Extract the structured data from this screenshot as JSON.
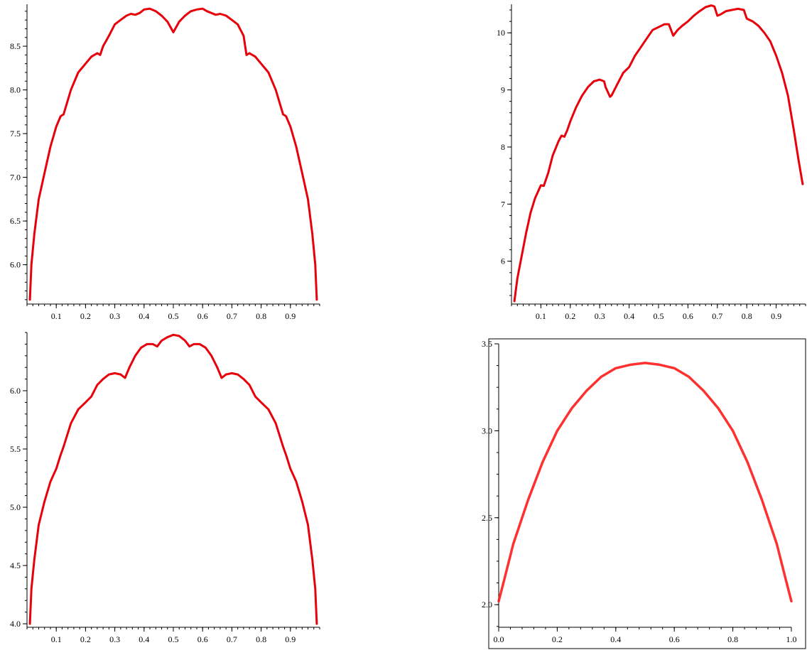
{
  "chart_data": [
    {
      "type": "line",
      "title": "",
      "xlabel": "",
      "ylabel": "",
      "xlim": [
        0.0,
        1.0
      ],
      "ylim": [
        5.55,
        8.98
      ],
      "xticks": [
        0.1,
        0.2,
        0.3,
        0.4,
        0.5,
        0.6,
        0.7,
        0.8,
        0.9
      ],
      "xtick_labels": [
        "0.1",
        "0.2",
        "0.3",
        "0.4",
        "0.5",
        "0.6",
        "0.7",
        "0.8",
        "0.9"
      ],
      "yticks": [
        6.0,
        6.5,
        7.0,
        7.5,
        8.0,
        8.5
      ],
      "ytick_labels": [
        "6.0",
        "6.5",
        "7.0",
        "7.5",
        "8.0",
        "8.5"
      ],
      "grid": false,
      "frame": false,
      "color": "#e8000b",
      "series": [
        {
          "x": [
            0.01,
            0.015,
            0.025,
            0.04,
            0.06,
            0.08,
            0.1,
            0.115,
            0.125,
            0.15,
            0.175,
            0.2,
            0.22,
            0.24,
            0.25,
            0.26,
            0.28,
            0.3,
            0.32,
            0.34,
            0.355,
            0.37,
            0.385,
            0.4,
            0.42,
            0.44,
            0.46,
            0.48,
            0.5,
            0.52,
            0.54,
            0.56,
            0.58,
            0.6,
            0.615,
            0.63,
            0.645,
            0.66,
            0.68,
            0.7,
            0.72,
            0.74,
            0.75,
            0.76,
            0.78,
            0.8,
            0.825,
            0.85,
            0.875,
            0.885,
            0.9,
            0.92,
            0.94,
            0.96,
            0.975,
            0.985,
            0.99
          ],
          "y": [
            5.6,
            6.0,
            6.35,
            6.75,
            7.05,
            7.35,
            7.58,
            7.7,
            7.72,
            8.0,
            8.2,
            8.3,
            8.38,
            8.42,
            8.4,
            8.5,
            8.62,
            8.75,
            8.8,
            8.85,
            8.87,
            8.86,
            8.88,
            8.92,
            8.93,
            8.9,
            8.85,
            8.78,
            8.66,
            8.78,
            8.85,
            8.9,
            8.92,
            8.93,
            8.9,
            8.88,
            8.86,
            8.87,
            8.85,
            8.8,
            8.75,
            8.62,
            8.4,
            8.42,
            8.38,
            8.3,
            8.2,
            8.0,
            7.72,
            7.7,
            7.58,
            7.35,
            7.05,
            6.75,
            6.35,
            6.0,
            5.6
          ]
        }
      ]
    },
    {
      "type": "line",
      "title": "",
      "xlabel": "",
      "ylabel": "",
      "xlim": [
        0.0,
        1.0
      ],
      "ylim": [
        5.25,
        10.5
      ],
      "xticks": [
        0.1,
        0.2,
        0.3,
        0.4,
        0.5,
        0.6,
        0.7,
        0.8,
        0.9
      ],
      "xtick_labels": [
        "0.1",
        "0.2",
        "0.3",
        "0.4",
        "0.5",
        "0.6",
        "0.7",
        "0.8",
        "0.9"
      ],
      "yticks": [
        6,
        7,
        8,
        9,
        10
      ],
      "ytick_labels": [
        "6",
        "7",
        "8",
        "9",
        "10"
      ],
      "grid": false,
      "frame": false,
      "color": "#e8000b",
      "series": [
        {
          "x": [
            0.01,
            0.02,
            0.035,
            0.05,
            0.065,
            0.08,
            0.1,
            0.11,
            0.125,
            0.14,
            0.16,
            0.17,
            0.18,
            0.19,
            0.2,
            0.22,
            0.24,
            0.26,
            0.28,
            0.3,
            0.315,
            0.32,
            0.335,
            0.34,
            0.36,
            0.38,
            0.4,
            0.42,
            0.44,
            0.46,
            0.48,
            0.5,
            0.52,
            0.535,
            0.55,
            0.565,
            0.58,
            0.6,
            0.62,
            0.64,
            0.66,
            0.68,
            0.69,
            0.7,
            0.71,
            0.73,
            0.75,
            0.77,
            0.79,
            0.8,
            0.82,
            0.84,
            0.86,
            0.88,
            0.9,
            0.92,
            0.94,
            0.96,
            0.975,
            0.99
          ],
          "y": [
            5.3,
            5.7,
            6.1,
            6.5,
            6.85,
            7.1,
            7.33,
            7.32,
            7.55,
            7.85,
            8.1,
            8.2,
            8.18,
            8.3,
            8.45,
            8.7,
            8.9,
            9.05,
            9.15,
            9.18,
            9.15,
            9.05,
            8.88,
            8.9,
            9.1,
            9.3,
            9.4,
            9.6,
            9.75,
            9.9,
            10.05,
            10.1,
            10.15,
            10.15,
            9.95,
            10.05,
            10.12,
            10.2,
            10.3,
            10.38,
            10.45,
            10.48,
            10.46,
            10.3,
            10.32,
            10.38,
            10.4,
            10.42,
            10.4,
            10.25,
            10.2,
            10.12,
            10.0,
            9.85,
            9.6,
            9.3,
            8.9,
            8.3,
            7.8,
            7.35
          ]
        }
      ]
    },
    {
      "type": "line",
      "title": "",
      "xlabel": "",
      "ylabel": "",
      "xlim": [
        0.0,
        1.0
      ],
      "ylim": [
        3.97,
        6.5
      ],
      "xticks": [
        0.1,
        0.2,
        0.3,
        0.4,
        0.5,
        0.6,
        0.7,
        0.8,
        0.9
      ],
      "xtick_labels": [
        "0.1",
        "0.2",
        "0.3",
        "0.4",
        "0.5",
        "0.6",
        "0.7",
        "0.8",
        "0.9"
      ],
      "yticks": [
        4.0,
        4.5,
        5.0,
        5.5,
        6.0
      ],
      "ytick_labels": [
        "4.0",
        "4.5",
        "5.0",
        "5.5",
        "6.0"
      ],
      "grid": false,
      "frame": false,
      "color": "#e8000b",
      "series": [
        {
          "x": [
            0.01,
            0.015,
            0.025,
            0.04,
            0.06,
            0.08,
            0.1,
            0.115,
            0.125,
            0.15,
            0.175,
            0.2,
            0.22,
            0.24,
            0.26,
            0.28,
            0.3,
            0.32,
            0.335,
            0.35,
            0.37,
            0.39,
            0.41,
            0.43,
            0.445,
            0.46,
            0.48,
            0.5,
            0.52,
            0.54,
            0.555,
            0.57,
            0.59,
            0.61,
            0.63,
            0.65,
            0.665,
            0.68,
            0.7,
            0.72,
            0.74,
            0.76,
            0.78,
            0.8,
            0.825,
            0.85,
            0.875,
            0.885,
            0.9,
            0.92,
            0.94,
            0.96,
            0.975,
            0.985,
            0.99
          ],
          "y": [
            4.0,
            4.3,
            4.55,
            4.85,
            5.05,
            5.22,
            5.33,
            5.45,
            5.52,
            5.72,
            5.84,
            5.9,
            5.95,
            6.05,
            6.1,
            6.14,
            6.15,
            6.14,
            6.11,
            6.2,
            6.3,
            6.37,
            6.4,
            6.4,
            6.38,
            6.43,
            6.46,
            6.48,
            6.47,
            6.43,
            6.38,
            6.4,
            6.4,
            6.37,
            6.3,
            6.2,
            6.11,
            6.14,
            6.15,
            6.14,
            6.1,
            6.05,
            5.95,
            5.9,
            5.84,
            5.72,
            5.52,
            5.45,
            5.33,
            5.22,
            5.05,
            4.85,
            4.55,
            4.3,
            4.0
          ]
        }
      ]
    },
    {
      "type": "line",
      "title": "",
      "xlabel": "",
      "ylabel": "",
      "xlim": [
        0.0,
        1.0
      ],
      "ylim": [
        1.87,
        3.5
      ],
      "xticks": [
        0.0,
        0.2,
        0.4,
        0.6,
        0.8,
        1.0
      ],
      "xtick_labels": [
        "0.0",
        "0.2",
        "0.4",
        "0.6",
        "0.8",
        "1.0"
      ],
      "yticks": [
        2.0,
        2.5,
        3.0,
        3.5
      ],
      "ytick_labels": [
        "2.0",
        "2.5",
        "3.0",
        "3.5"
      ],
      "grid": false,
      "frame": true,
      "color": "#ff1a1a",
      "series": [
        {
          "x": [
            0.0,
            0.02,
            0.05,
            0.1,
            0.15,
            0.2,
            0.25,
            0.3,
            0.35,
            0.4,
            0.45,
            0.5,
            0.55,
            0.6,
            0.65,
            0.7,
            0.75,
            0.8,
            0.85,
            0.9,
            0.95,
            0.98,
            1.0
          ],
          "y": [
            2.02,
            2.15,
            2.35,
            2.6,
            2.82,
            3.0,
            3.13,
            3.23,
            3.31,
            3.36,
            3.38,
            3.39,
            3.38,
            3.36,
            3.31,
            3.23,
            3.13,
            3.0,
            2.82,
            2.6,
            2.35,
            2.15,
            2.02
          ]
        }
      ]
    }
  ]
}
